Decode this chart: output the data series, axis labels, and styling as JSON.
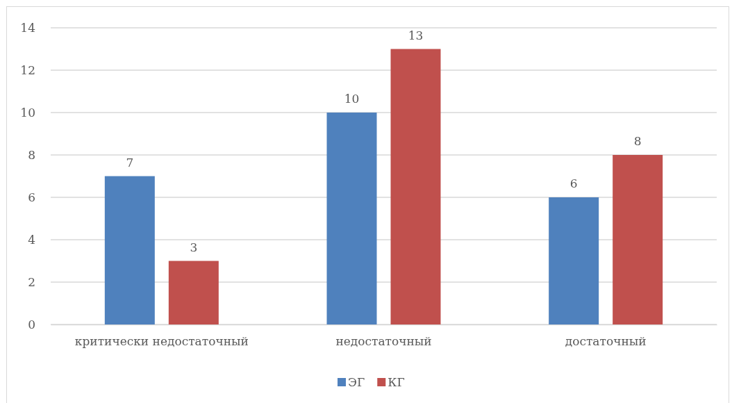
{
  "chart_data": {
    "type": "bar",
    "categories": [
      "критически недостаточный",
      "недостаточный",
      "достаточный"
    ],
    "series": [
      {
        "name": "ЭГ",
        "color": "#4f81bd",
        "values": [
          7,
          10,
          6
        ]
      },
      {
        "name": "КГ",
        "color": "#c0504d",
        "values": [
          3,
          13,
          8
        ]
      }
    ],
    "ylim": [
      0,
      14
    ],
    "yticks": [
      0,
      2,
      4,
      6,
      8,
      10,
      12,
      14
    ],
    "grid": "y",
    "legend": "bottom",
    "data_labels": true
  }
}
